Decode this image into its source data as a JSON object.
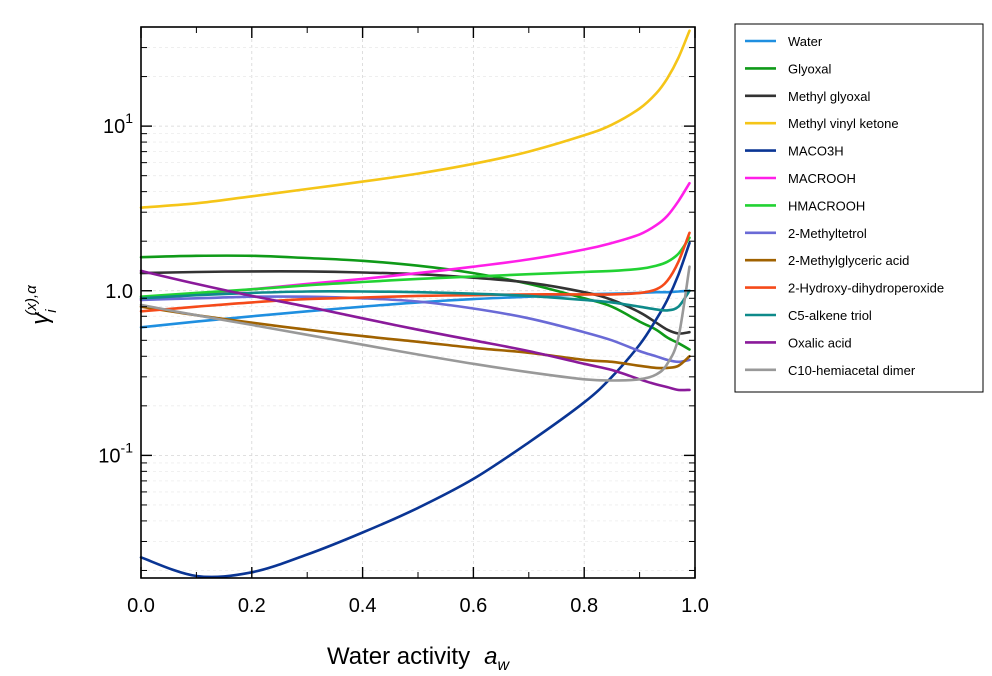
{
  "chart_data": {
    "type": "line",
    "xlabel": "Water activity",
    "xlabel_symbol": "a",
    "xlabel_subscript": "w",
    "ylabel_base": "γ",
    "ylabel_sub": "i",
    "ylabel_sup": "(x),α",
    "xlim": [
      0.0,
      1.0
    ],
    "ylim": [
      0.018,
      40
    ],
    "yscale": "log",
    "grid": true,
    "legend_position": "right-outside",
    "x_ticks": [
      {
        "value": 0.0,
        "label": "0.0"
      },
      {
        "value": 0.2,
        "label": "0.2"
      },
      {
        "value": 0.4,
        "label": "0.4"
      },
      {
        "value": 0.6,
        "label": "0.6"
      },
      {
        "value": 0.8,
        "label": "0.8"
      },
      {
        "value": 1.0,
        "label": "1.0"
      }
    ],
    "y_ticks": [
      {
        "value": 10,
        "base": "10",
        "exp": "1"
      },
      {
        "value": 1,
        "base": "1.0",
        "exp": ""
      },
      {
        "value": 0.1,
        "base": "10",
        "exp": "-1"
      }
    ],
    "x": [
      0.0,
      0.1,
      0.2,
      0.3,
      0.4,
      0.5,
      0.6,
      0.7,
      0.8,
      0.85,
      0.9,
      0.93,
      0.95,
      0.97,
      0.99
    ],
    "series": [
      {
        "name": "Water",
        "color": "#1f8fe0",
        "values": [
          0.6,
          0.65,
          0.7,
          0.75,
          0.8,
          0.85,
          0.89,
          0.92,
          0.95,
          0.96,
          0.97,
          0.98,
          0.98,
          0.99,
          1.0
        ]
      },
      {
        "name": "Glyoxal",
        "color": "#0f9a18",
        "values": [
          1.6,
          1.63,
          1.63,
          1.58,
          1.52,
          1.42,
          1.28,
          1.1,
          0.9,
          0.8,
          0.65,
          0.58,
          0.52,
          0.48,
          0.44
        ]
      },
      {
        "name": "Methyl glyoxal",
        "color": "#333333",
        "values": [
          1.28,
          1.3,
          1.31,
          1.31,
          1.29,
          1.26,
          1.2,
          1.12,
          0.98,
          0.88,
          0.74,
          0.64,
          0.58,
          0.55,
          0.56
        ]
      },
      {
        "name": "Methyl vinyl ketone",
        "color": "#f5c518",
        "values": [
          3.2,
          3.4,
          3.75,
          4.15,
          4.6,
          5.15,
          5.9,
          7.0,
          8.8,
          10.2,
          12.8,
          15.8,
          19.5,
          26,
          38
        ]
      },
      {
        "name": "MACO3H",
        "color": "#0a3594",
        "values": [
          0.024,
          0.0185,
          0.0195,
          0.025,
          0.034,
          0.048,
          0.072,
          0.12,
          0.21,
          0.3,
          0.47,
          0.67,
          0.88,
          1.25,
          1.95
        ]
      },
      {
        "name": "MACROOH",
        "color": "#ff1fe8",
        "values": [
          0.88,
          0.95,
          1.02,
          1.1,
          1.18,
          1.28,
          1.4,
          1.55,
          1.78,
          1.95,
          2.2,
          2.5,
          2.85,
          3.5,
          4.5
        ]
      },
      {
        "name": "HMACROOH",
        "color": "#22d233",
        "values": [
          0.92,
          0.97,
          1.02,
          1.08,
          1.13,
          1.18,
          1.22,
          1.26,
          1.3,
          1.32,
          1.36,
          1.42,
          1.5,
          1.68,
          2.1
        ]
      },
      {
        "name": "2-Methyltetrol",
        "color": "#6a6ad6",
        "values": [
          0.88,
          0.9,
          0.92,
          0.92,
          0.9,
          0.86,
          0.78,
          0.68,
          0.56,
          0.5,
          0.43,
          0.4,
          0.38,
          0.37,
          0.38
        ]
      },
      {
        "name": "2-Methylglyceric acid",
        "color": "#a06200",
        "values": [
          0.8,
          0.71,
          0.64,
          0.58,
          0.53,
          0.49,
          0.45,
          0.42,
          0.38,
          0.37,
          0.35,
          0.34,
          0.34,
          0.35,
          0.4
        ]
      },
      {
        "name": "2-Hydroxy-dihydroperoxide",
        "color": "#f54a1a",
        "values": [
          0.75,
          0.8,
          0.85,
          0.89,
          0.91,
          0.93,
          0.94,
          0.95,
          0.95,
          0.95,
          0.97,
          1.02,
          1.15,
          1.5,
          2.25
        ]
      },
      {
        "name": "C5-alkene triol",
        "color": "#0e8a8a",
        "values": [
          0.9,
          0.94,
          0.97,
          0.99,
          0.99,
          0.98,
          0.96,
          0.93,
          0.88,
          0.85,
          0.8,
          0.77,
          0.76,
          0.8,
          1.0
        ]
      },
      {
        "name": "Oxalic acid",
        "color": "#8a1a9a",
        "values": [
          1.32,
          1.1,
          0.93,
          0.8,
          0.68,
          0.58,
          0.5,
          0.43,
          0.36,
          0.33,
          0.29,
          0.27,
          0.26,
          0.25,
          0.25
        ]
      },
      {
        "name": "C10-hemiacetal dimer",
        "color": "#999999",
        "values": [
          0.82,
          0.71,
          0.62,
          0.54,
          0.47,
          0.41,
          0.36,
          0.32,
          0.29,
          0.285,
          0.29,
          0.31,
          0.36,
          0.52,
          1.4
        ]
      }
    ]
  }
}
